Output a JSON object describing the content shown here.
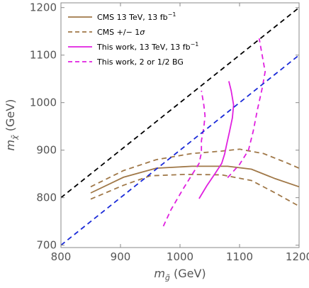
{
  "chart_data": {
    "type": "line",
    "xlabel": "m",
    "xlabel_sub": "g̃",
    "xlabel_unit": " (GeV)",
    "ylabel": "m",
    "ylabel_sub": "χ̃",
    "ylabel_unit": " (GeV)",
    "xlim": [
      800,
      1200
    ],
    "ylim": [
      695,
      1210
    ],
    "xticks": [
      800,
      900,
      1000,
      1100,
      1200
    ],
    "yticks": [
      700,
      800,
      900,
      1000,
      1100,
      1200
    ],
    "legend_position": "top-left",
    "series": [
      {
        "name": "CMS 13 TeV, 13 fb",
        "name_sup": "−1",
        "color": "#a07848",
        "dash": "solid",
        "in_legend": true,
        "points": [
          [
            850,
            810
          ],
          [
            905,
            843
          ],
          [
            960,
            862
          ],
          [
            1020,
            866
          ],
          [
            1080,
            866
          ],
          [
            1120,
            860
          ],
          [
            1160,
            840
          ],
          [
            1200,
            823
          ]
        ]
      },
      {
        "name": "CMS +/− 1",
        "name_greek": "σ",
        "color": "#a07848",
        "dash": "dashed",
        "in_legend": true,
        "points": [
          [
            850,
            823
          ],
          [
            905,
            857
          ],
          [
            960,
            880
          ],
          [
            1020,
            893
          ],
          [
            1070,
            898
          ],
          [
            1100,
            902
          ],
          [
            1140,
            893
          ],
          [
            1180,
            873
          ],
          [
            1200,
            862
          ]
        ]
      },
      {
        "name": "",
        "color": "#a07848",
        "dash": "dashed",
        "in_legend": false,
        "points": [
          [
            850,
            797
          ],
          [
            905,
            826
          ],
          [
            950,
            846
          ],
          [
            1010,
            849
          ],
          [
            1070,
            848
          ],
          [
            1120,
            836
          ],
          [
            1160,
            810
          ],
          [
            1200,
            782
          ]
        ]
      },
      {
        "name": "This work, 13 TeV, 13 fb",
        "name_sup": "−1",
        "color": "#e020e0",
        "dash": "solid",
        "in_legend": true,
        "points": [
          [
            1032,
            798
          ],
          [
            1045,
            825
          ],
          [
            1060,
            853
          ],
          [
            1070,
            872
          ],
          [
            1075,
            892
          ],
          [
            1078,
            910
          ],
          [
            1083,
            938
          ],
          [
            1088,
            968
          ],
          [
            1090,
            995
          ],
          [
            1086,
            1025
          ],
          [
            1082,
            1045
          ]
        ]
      },
      {
        "name": "This work, 2 or 1/2 BG",
        "color": "#e020e0",
        "dash": "dashed",
        "in_legend": true,
        "points": [
          [
            972,
            740
          ],
          [
            985,
            775
          ],
          [
            1005,
            818
          ],
          [
            1020,
            848
          ],
          [
            1032,
            872
          ],
          [
            1036,
            895
          ],
          [
            1036,
            920
          ],
          [
            1040,
            948
          ],
          [
            1042,
            972
          ],
          [
            1040,
            995
          ],
          [
            1036,
            1025
          ]
        ]
      },
      {
        "name": "",
        "color": "#e020e0",
        "dash": "dashed",
        "in_legend": false,
        "points": [
          [
            1080,
            842
          ],
          [
            1100,
            870
          ],
          [
            1115,
            900
          ],
          [
            1123,
            940
          ],
          [
            1130,
            985
          ],
          [
            1138,
            1030
          ],
          [
            1143,
            1065
          ],
          [
            1138,
            1100
          ],
          [
            1133,
            1135
          ]
        ]
      },
      {
        "name": "",
        "color": "#000000",
        "dash": "dashed",
        "in_legend": false,
        "points": [
          [
            800,
            800
          ],
          [
            1200,
            1200
          ]
        ]
      },
      {
        "name": "",
        "color": "#1a2ad8",
        "dash": "dashed",
        "in_legend": false,
        "points": [
          [
            800,
            700
          ],
          [
            1200,
            1100
          ]
        ]
      }
    ]
  }
}
